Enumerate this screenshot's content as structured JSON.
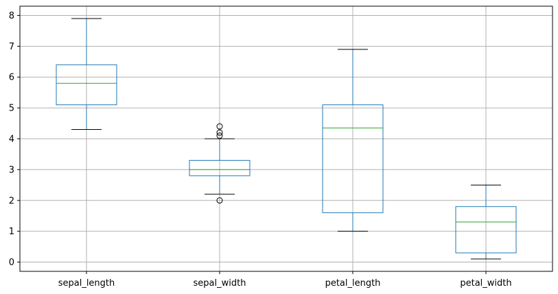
{
  "chart_data": {
    "type": "box",
    "title": "",
    "xlabel": "",
    "ylabel": "",
    "ylim": [
      -0.3,
      8.3
    ],
    "yticks": [
      0,
      1,
      2,
      3,
      4,
      5,
      6,
      7,
      8
    ],
    "grid": true,
    "categories": [
      "sepal_length",
      "sepal_width",
      "petal_length",
      "petal_width"
    ],
    "boxes": [
      {
        "name": "sepal_length",
        "whisker_low": 4.3,
        "q1": 5.1,
        "median": 5.8,
        "q3": 6.4,
        "whisker_high": 7.9,
        "outliers": []
      },
      {
        "name": "sepal_width",
        "whisker_low": 2.2,
        "q1": 2.8,
        "median": 3.0,
        "q3": 3.3,
        "whisker_high": 4.0,
        "outliers": [
          4.4,
          4.2,
          4.1,
          2.0
        ]
      },
      {
        "name": "petal_length",
        "whisker_low": 1.0,
        "q1": 1.6,
        "median": 4.35,
        "q3": 5.1,
        "whisker_high": 6.9,
        "outliers": []
      },
      {
        "name": "petal_width",
        "whisker_low": 0.1,
        "q1": 0.3,
        "median": 1.3,
        "q3": 1.8,
        "whisker_high": 2.5,
        "outliers": []
      }
    ],
    "colors": {
      "box": "#1f77b4",
      "median": "#2ca02c",
      "whisker_cap": "#000000",
      "grid": "#b0b0b0"
    }
  }
}
